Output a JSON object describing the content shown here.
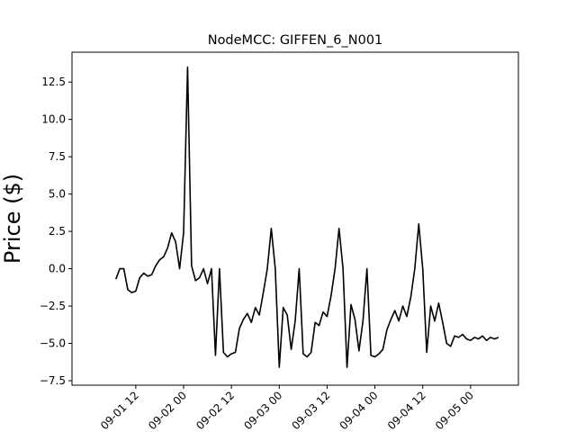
{
  "chart_data": {
    "type": "line",
    "title": "NodeMCC: GIFFEN_6_N001",
    "xlabel": "",
    "ylabel": "Price ($)",
    "xlim": [
      "2023-08-31T20:00",
      "2023-09-05T12:00"
    ],
    "ylim": [
      -7.8,
      14.5
    ],
    "grid": false,
    "x_ticks": [
      {
        "value": "2023-09-01T12:00",
        "label": "09-01 12"
      },
      {
        "value": "2023-09-02T00:00",
        "label": "09-02 00"
      },
      {
        "value": "2023-09-02T12:00",
        "label": "09-02 12"
      },
      {
        "value": "2023-09-03T00:00",
        "label": "09-03 00"
      },
      {
        "value": "2023-09-03T12:00",
        "label": "09-03 12"
      },
      {
        "value": "2023-09-04T00:00",
        "label": "09-04 00"
      },
      {
        "value": "2023-09-04T12:00",
        "label": "09-04 12"
      },
      {
        "value": "2023-09-05T00:00",
        "label": "09-05 00"
      }
    ],
    "y_ticks": [
      {
        "value": 12.5,
        "label": "12.5"
      },
      {
        "value": 10.0,
        "label": "10.0"
      },
      {
        "value": 7.5,
        "label": "7.5"
      },
      {
        "value": 5.0,
        "label": "5.0"
      },
      {
        "value": 2.5,
        "label": "2.5"
      },
      {
        "value": 0.0,
        "label": "0.0"
      },
      {
        "value": -2.5,
        "label": "−2.5"
      },
      {
        "value": -5.0,
        "label": "−5.0"
      },
      {
        "value": -7.5,
        "label": "−7.5"
      }
    ],
    "series": [
      {
        "color": "#000000",
        "x": [
          "2023-09-01T07:00",
          "2023-09-01T08:00",
          "2023-09-01T09:00",
          "2023-09-01T10:00",
          "2023-09-01T11:00",
          "2023-09-01T12:00",
          "2023-09-01T13:00",
          "2023-09-01T14:00",
          "2023-09-01T15:00",
          "2023-09-01T16:00",
          "2023-09-01T17:00",
          "2023-09-01T18:00",
          "2023-09-01T19:00",
          "2023-09-01T20:00",
          "2023-09-01T21:00",
          "2023-09-01T22:00",
          "2023-09-01T23:00",
          "2023-09-02T00:00",
          "2023-09-02T01:00",
          "2023-09-02T02:00",
          "2023-09-02T03:00",
          "2023-09-02T04:00",
          "2023-09-02T05:00",
          "2023-09-02T06:00",
          "2023-09-02T07:00",
          "2023-09-02T08:00",
          "2023-09-02T09:00",
          "2023-09-02T10:00",
          "2023-09-02T11:00",
          "2023-09-02T12:00",
          "2023-09-02T13:00",
          "2023-09-02T14:00",
          "2023-09-02T15:00",
          "2023-09-02T16:00",
          "2023-09-02T17:00",
          "2023-09-02T18:00",
          "2023-09-02T19:00",
          "2023-09-02T20:00",
          "2023-09-02T21:00",
          "2023-09-02T22:00",
          "2023-09-02T23:00",
          "2023-09-03T00:00",
          "2023-09-03T01:00",
          "2023-09-03T02:00",
          "2023-09-03T03:00",
          "2023-09-03T04:00",
          "2023-09-03T05:00",
          "2023-09-03T06:00",
          "2023-09-03T07:00",
          "2023-09-03T08:00",
          "2023-09-03T09:00",
          "2023-09-03T10:00",
          "2023-09-03T11:00",
          "2023-09-03T12:00",
          "2023-09-03T13:00",
          "2023-09-03T14:00",
          "2023-09-03T15:00",
          "2023-09-03T16:00",
          "2023-09-03T17:00",
          "2023-09-03T18:00",
          "2023-09-03T19:00",
          "2023-09-03T20:00",
          "2023-09-03T21:00",
          "2023-09-03T22:00",
          "2023-09-03T23:00",
          "2023-09-04T00:00",
          "2023-09-04T01:00",
          "2023-09-04T02:00",
          "2023-09-04T03:00",
          "2023-09-04T04:00",
          "2023-09-04T05:00",
          "2023-09-04T06:00",
          "2023-09-04T07:00",
          "2023-09-04T08:00",
          "2023-09-04T09:00",
          "2023-09-04T10:00",
          "2023-09-04T11:00",
          "2023-09-04T12:00",
          "2023-09-04T13:00",
          "2023-09-04T14:00",
          "2023-09-04T15:00",
          "2023-09-04T16:00",
          "2023-09-04T17:00",
          "2023-09-04T18:00",
          "2023-09-04T19:00",
          "2023-09-04T20:00",
          "2023-09-04T21:00",
          "2023-09-04T22:00",
          "2023-09-04T23:00",
          "2023-09-05T00:00",
          "2023-09-05T01:00",
          "2023-09-05T02:00",
          "2023-09-05T03:00",
          "2023-09-05T04:00",
          "2023-09-05T05:00",
          "2023-09-05T06:00",
          "2023-09-05T07:00"
        ],
        "values": [
          -0.7,
          0.0,
          0.0,
          -1.4,
          -1.6,
          -1.5,
          -0.6,
          -0.3,
          -0.5,
          -0.4,
          0.2,
          0.6,
          0.8,
          1.4,
          2.4,
          1.8,
          0.0,
          2.4,
          13.5,
          0.2,
          -0.8,
          -0.6,
          0.0,
          -1.0,
          0.0,
          -5.8,
          0.0,
          -5.6,
          -5.9,
          -5.7,
          -5.6,
          -4.0,
          -3.4,
          -3.0,
          -3.6,
          -2.6,
          -3.1,
          -1.6,
          0.0,
          2.7,
          0.0,
          -6.6,
          -2.6,
          -3.1,
          -5.4,
          -3.5,
          0.0,
          -5.7,
          -5.9,
          -5.6,
          -3.6,
          -3.8,
          -2.9,
          -3.2,
          -1.8,
          0.0,
          2.7,
          0.0,
          -6.6,
          -2.4,
          -3.4,
          -5.5,
          -3.5,
          0.0,
          -5.8,
          -5.9,
          -5.7,
          -5.4,
          -4.1,
          -3.4,
          -2.8,
          -3.5,
          -2.5,
          -3.2,
          -1.9,
          0.0,
          3.0,
          0.0,
          -5.6,
          -2.5,
          -3.5,
          -2.3,
          -3.6,
          -5.0,
          -5.2,
          -4.5,
          -4.6,
          -4.4,
          -4.7,
          -4.8,
          -4.6,
          -4.7,
          -4.5,
          -4.8,
          -4.6,
          -4.7,
          -4.6
        ]
      }
    ]
  }
}
